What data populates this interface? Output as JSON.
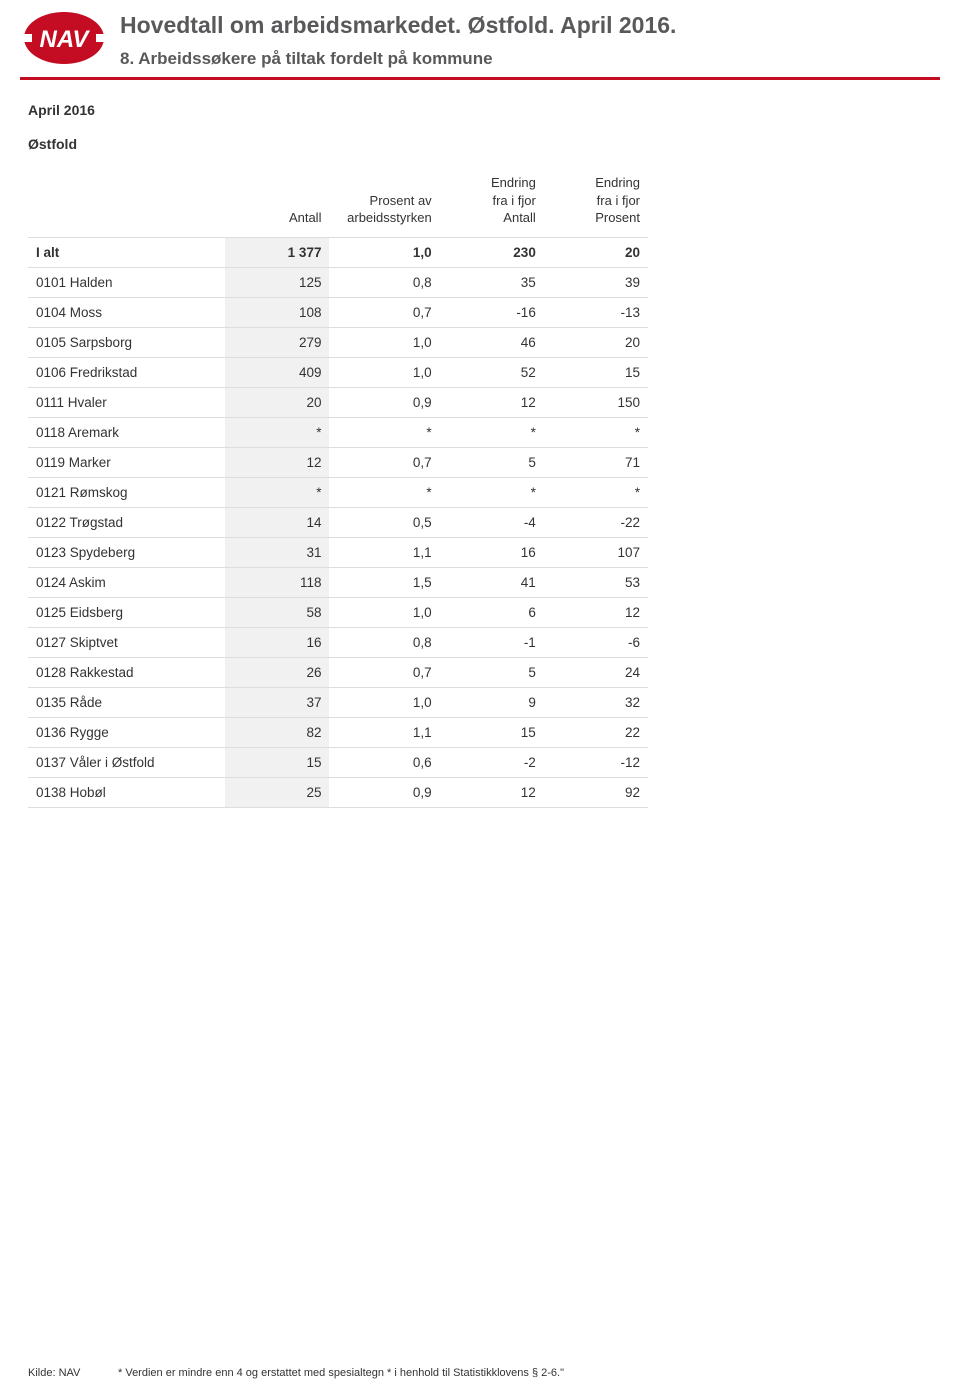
{
  "header": {
    "title": "Hovedtall om arbeidsmarkedet. Østfold. April 2016.",
    "subtitle": "8. Arbeidssøkere på tiltak fordelt på kommune",
    "logo_text": "NAV",
    "logo_red": "#c40c23",
    "rule_color": "#c40c23"
  },
  "meta": {
    "period": "April 2016",
    "region": "Østfold"
  },
  "columns": {
    "c0": "",
    "c1": "Antall",
    "c2_l1": "Prosent av",
    "c2_l2": "arbeidsstyrken",
    "c3_l1": "Endring",
    "c3_l2": "fra i fjor",
    "c3_l3": "Antall",
    "c4_l1": "Endring",
    "c4_l2": "fra i fjor",
    "c4_l3": "Prosent"
  },
  "total_row": {
    "label": "I alt",
    "antall": "1 377",
    "prosent": "1,0",
    "endr_ant": "230",
    "endr_pros": "20"
  },
  "rows": [
    {
      "label": "0101 Halden",
      "antall": "125",
      "prosent": "0,8",
      "endr_ant": "35",
      "endr_pros": "39"
    },
    {
      "label": "0104 Moss",
      "antall": "108",
      "prosent": "0,7",
      "endr_ant": "-16",
      "endr_pros": "-13"
    },
    {
      "label": "0105 Sarpsborg",
      "antall": "279",
      "prosent": "1,0",
      "endr_ant": "46",
      "endr_pros": "20"
    },
    {
      "label": "0106 Fredrikstad",
      "antall": "409",
      "prosent": "1,0",
      "endr_ant": "52",
      "endr_pros": "15"
    },
    {
      "label": "0111 Hvaler",
      "antall": "20",
      "prosent": "0,9",
      "endr_ant": "12",
      "endr_pros": "150"
    },
    {
      "label": "0118 Aremark",
      "antall": "*",
      "prosent": "*",
      "endr_ant": "*",
      "endr_pros": "*"
    },
    {
      "label": "0119 Marker",
      "antall": "12",
      "prosent": "0,7",
      "endr_ant": "5",
      "endr_pros": "71"
    },
    {
      "label": "0121 Rømskog",
      "antall": "*",
      "prosent": "*",
      "endr_ant": "*",
      "endr_pros": "*"
    },
    {
      "label": "0122 Trøgstad",
      "antall": "14",
      "prosent": "0,5",
      "endr_ant": "-4",
      "endr_pros": "-22"
    },
    {
      "label": "0123 Spydeberg",
      "antall": "31",
      "prosent": "1,1",
      "endr_ant": "16",
      "endr_pros": "107"
    },
    {
      "label": "0124 Askim",
      "antall": "118",
      "prosent": "1,5",
      "endr_ant": "41",
      "endr_pros": "53"
    },
    {
      "label": "0125 Eidsberg",
      "antall": "58",
      "prosent": "1,0",
      "endr_ant": "6",
      "endr_pros": "12"
    },
    {
      "label": "0127 Skiptvet",
      "antall": "16",
      "prosent": "0,8",
      "endr_ant": "-1",
      "endr_pros": "-6"
    },
    {
      "label": "0128 Rakkestad",
      "antall": "26",
      "prosent": "0,7",
      "endr_ant": "5",
      "endr_pros": "24"
    },
    {
      "label": "0135 Råde",
      "antall": "37",
      "prosent": "1,0",
      "endr_ant": "9",
      "endr_pros": "32"
    },
    {
      "label": "0136 Rygge",
      "antall": "82",
      "prosent": "1,1",
      "endr_ant": "15",
      "endr_pros": "22"
    },
    {
      "label": "0137 Våler i Østfold",
      "antall": "15",
      "prosent": "0,6",
      "endr_ant": "-2",
      "endr_pros": "-12"
    },
    {
      "label": "0138 Hobøl",
      "antall": "25",
      "prosent": "0,9",
      "endr_ant": "12",
      "endr_pros": "92"
    }
  ],
  "footer": {
    "source_label": "Kilde: NAV",
    "note": "* Verdien er mindre enn 4 og erstattet med spesialtegn * i henhold til Statistikklovens § 2-6.\""
  },
  "style": {
    "text_color": "#333333",
    "header_text_color": "#59595b",
    "stripe_bg": "#f1f1f1",
    "row_border": "#dddddd",
    "page_bg": "#ffffff"
  }
}
